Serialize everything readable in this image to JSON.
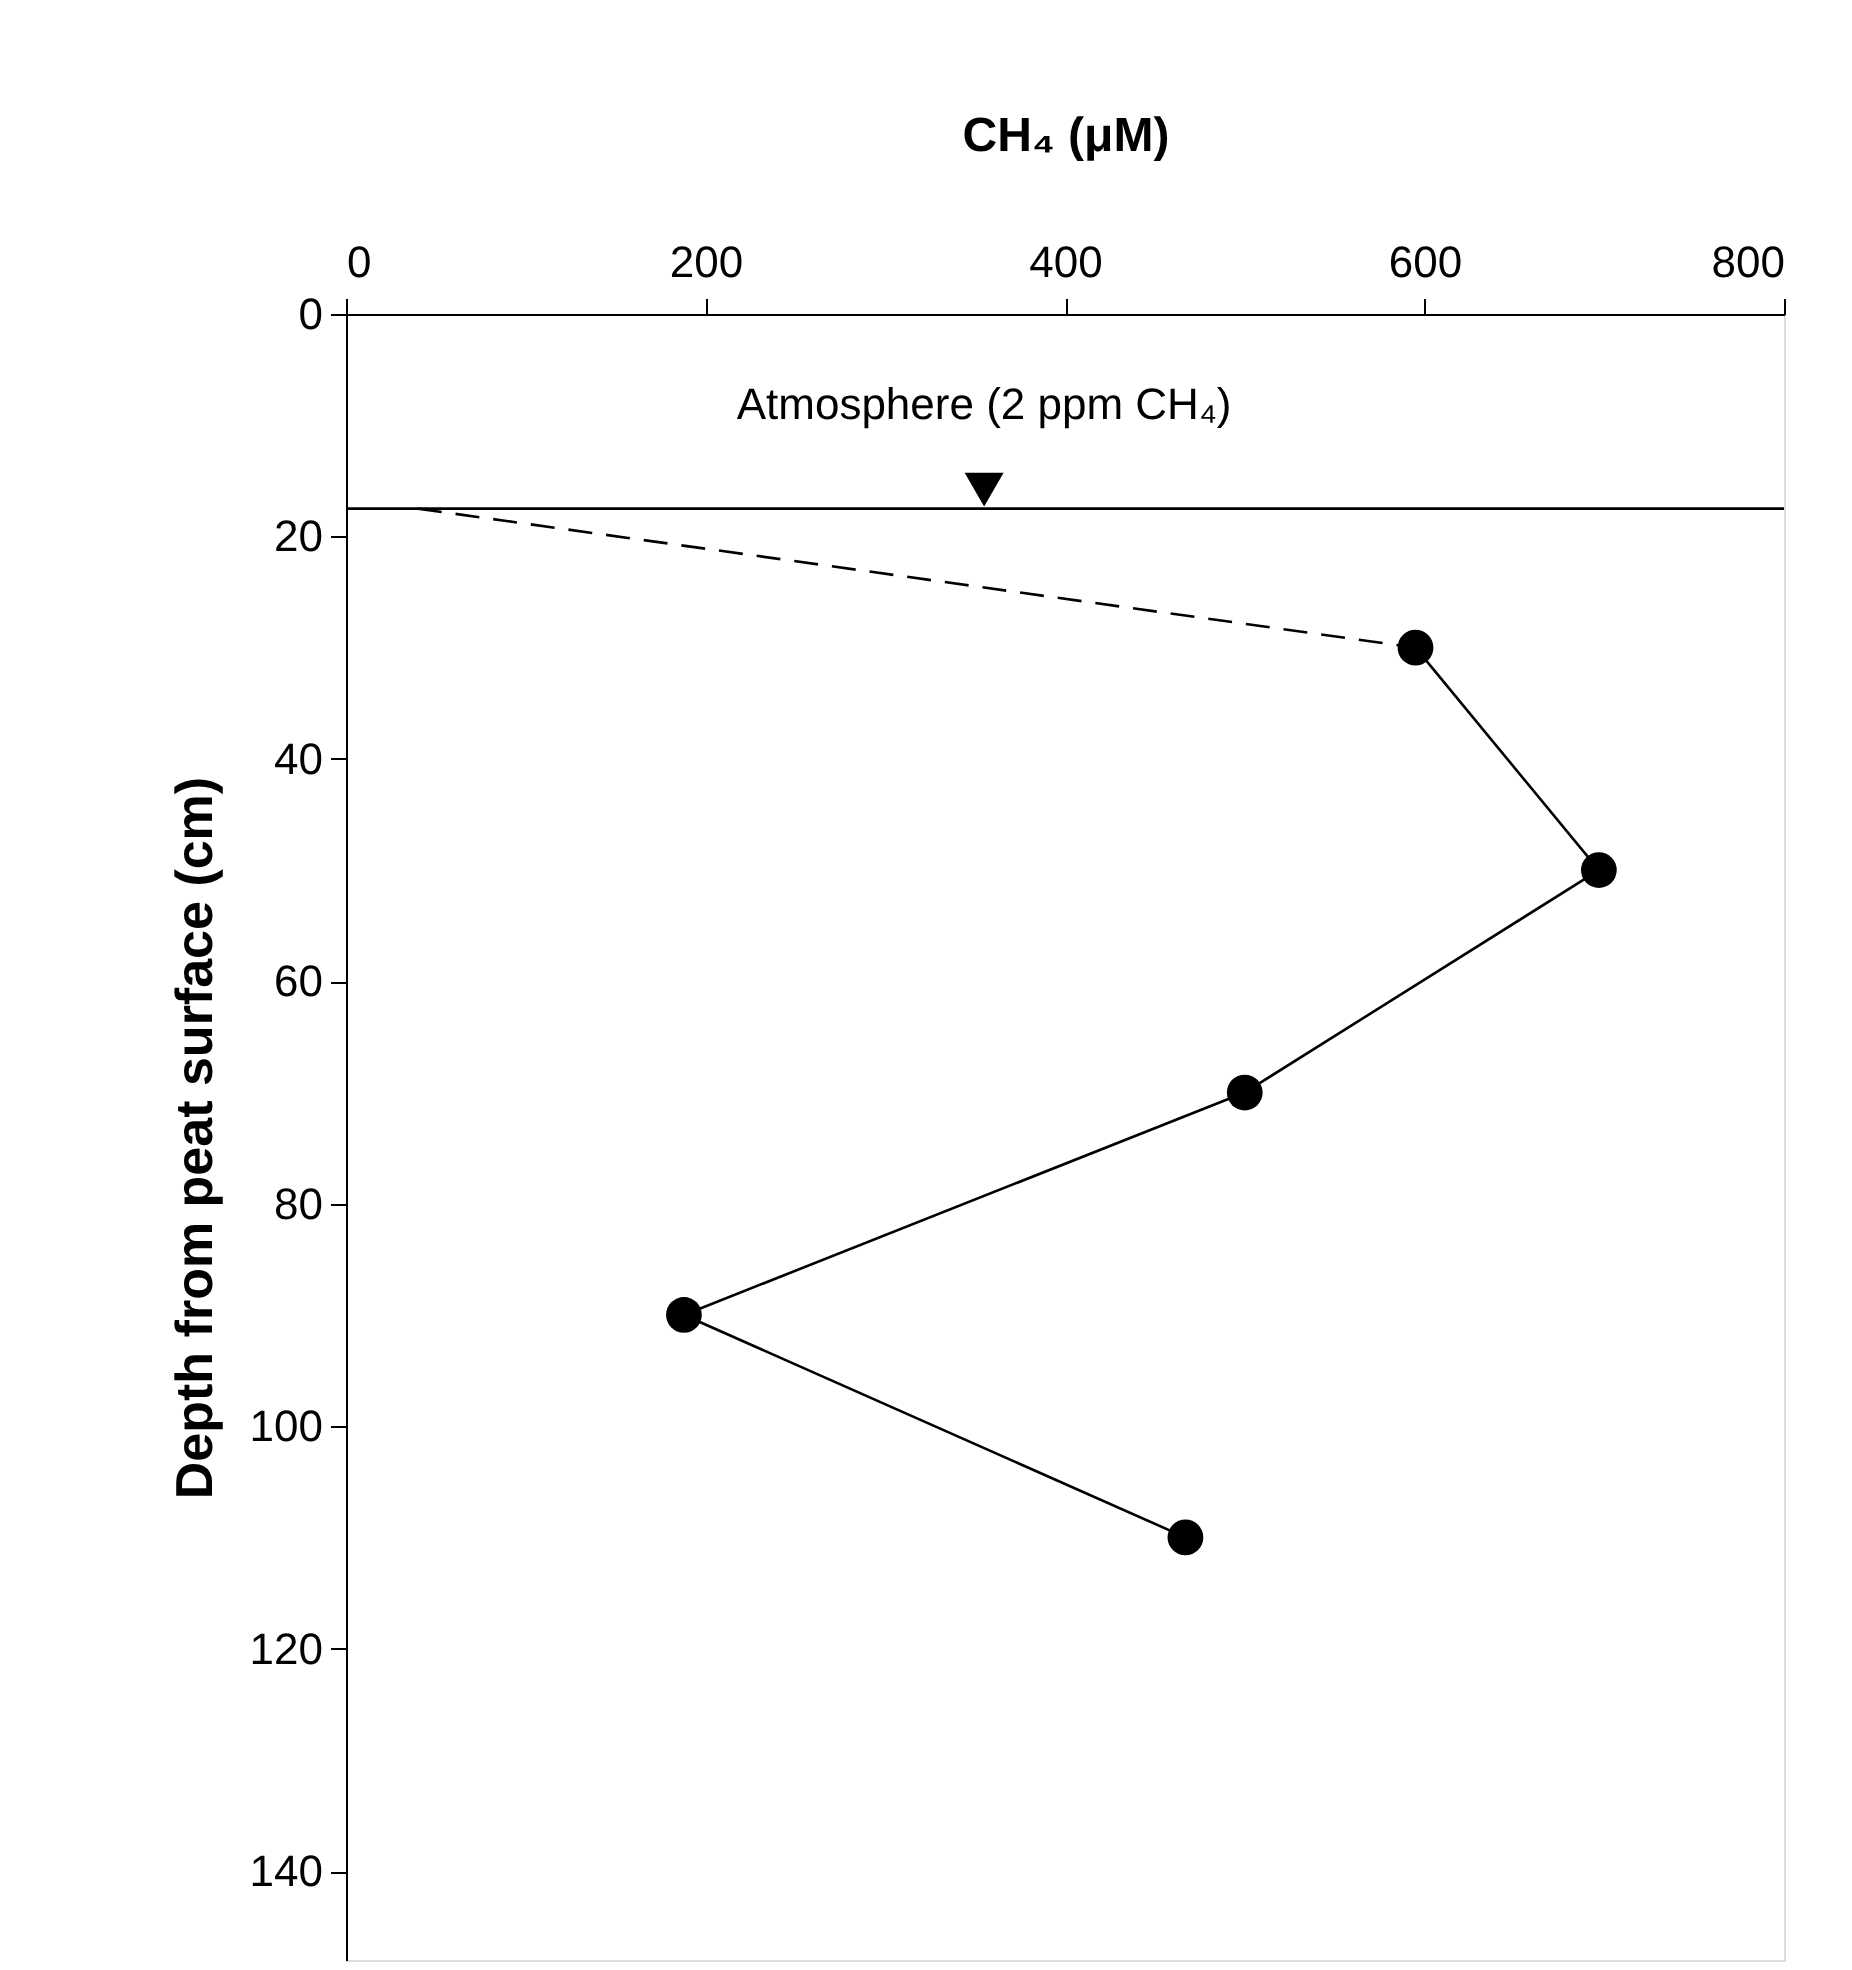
{
  "chart_data": {
    "type": "line",
    "xlabel": "CH₄ (μM)",
    "ylabel": "Depth from peat surface (cm)",
    "xlim": [
      0,
      800
    ],
    "xticks": [
      0,
      200,
      400,
      600,
      800
    ],
    "ylim": [
      148,
      0
    ],
    "yticks": [
      0,
      20,
      40,
      60,
      80,
      100,
      120,
      140
    ],
    "series": [
      {
        "x": [
          595,
          697,
          500,
          188,
          467
        ],
        "values": [
          30,
          50,
          70,
          90,
          110
        ],
        "color": "#000000",
        "marker": "circle",
        "line_style": "solid"
      },
      {
        "x": [
          40,
          595
        ],
        "values": [
          17.5,
          30
        ],
        "color": "#000000",
        "marker": "none",
        "line_style": "dashed"
      },
      {
        "x": [
          355
        ],
        "values": [
          15.8
        ],
        "color": "#000000",
        "marker": "triangle"
      }
    ],
    "ref_lines": [
      {
        "axis": "y",
        "value": 17.5,
        "color": "#000000"
      }
    ],
    "annotations": [
      {
        "text": "Atmosphere (2 ppm CH₄)",
        "x": 355,
        "y": 17.5
      }
    ],
    "grid": false
  }
}
